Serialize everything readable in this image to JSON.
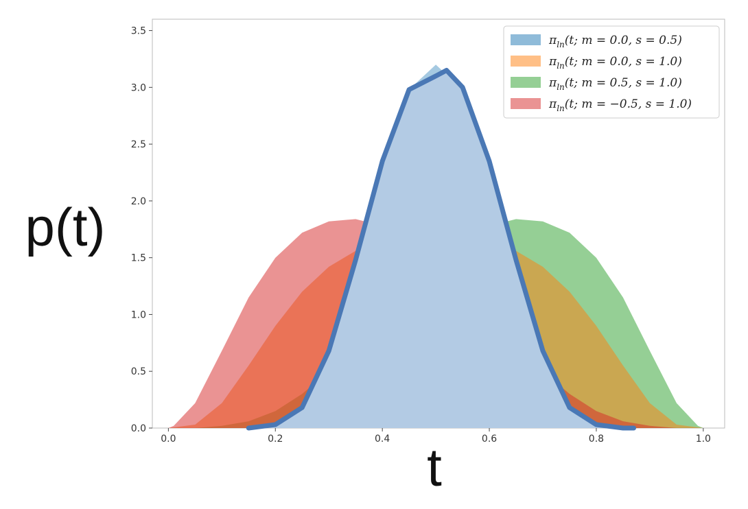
{
  "chart_data": {
    "type": "area",
    "title": "",
    "xlabel": "t",
    "ylabel": "p(t)",
    "xlim": [
      -0.03,
      1.04
    ],
    "ylim": [
      0,
      3.6
    ],
    "xticks": [
      0.0,
      0.2,
      0.4,
      0.6,
      0.8,
      1.0
    ],
    "xtick_labels": [
      "0.0",
      "0.2",
      "0.4",
      "0.6",
      "0.8",
      "1.0"
    ],
    "yticks": [
      0.0,
      0.5,
      1.0,
      1.5,
      2.0,
      2.5,
      3.0,
      3.5
    ],
    "ytick_labels": [
      "0.0",
      "0.5",
      "1.0",
      "1.5",
      "2.0",
      "2.5",
      "3.0",
      "3.5"
    ],
    "grid": false,
    "legend_position": "top-right",
    "series": [
      {
        "name": "π_ln(t; m = 0.0, s = 0.5)",
        "legend_main": "π",
        "legend_sub": "ln",
        "legend_rest": "(t; m = 0.0, s = 0.5)",
        "color": "#1f77b4",
        "x": [
          0.0,
          0.05,
          0.1,
          0.15,
          0.2,
          0.25,
          0.3,
          0.35,
          0.4,
          0.45,
          0.5,
          0.55,
          0.6,
          0.65,
          0.7,
          0.75,
          0.8,
          0.85,
          0.9,
          0.95,
          1.0
        ],
        "y": [
          0,
          0.0,
          0.0,
          0.0,
          0.02,
          0.18,
          0.68,
          1.48,
          2.35,
          2.98,
          3.2,
          2.98,
          2.35,
          1.48,
          0.68,
          0.18,
          0.02,
          0.0,
          0.0,
          0.0,
          0
        ]
      },
      {
        "name": "π_ln(t; m = 0.0, s = 1.0)",
        "legend_main": "π",
        "legend_sub": "ln",
        "legend_rest": "(t; m = 0.0, s = 1.0)",
        "color": "#ff7f0e",
        "x": [
          0.0,
          0.05,
          0.1,
          0.15,
          0.2,
          0.25,
          0.3,
          0.35,
          0.4,
          0.45,
          0.5,
          0.55,
          0.6,
          0.65,
          0.7,
          0.75,
          0.8,
          0.85,
          0.9,
          0.95,
          1.0
        ],
        "y": [
          0,
          0.03,
          0.22,
          0.55,
          0.9,
          1.2,
          1.42,
          1.56,
          1.63,
          1.62,
          1.6,
          1.62,
          1.63,
          1.56,
          1.42,
          1.2,
          0.9,
          0.55,
          0.22,
          0.03,
          0
        ]
      },
      {
        "name": "π_ln(t; m = 0.5, s = 1.0)",
        "legend_main": "π",
        "legend_sub": "ln",
        "legend_rest": "(t; m = 0.5, s = 1.0)",
        "color": "#2ca02c",
        "x": [
          0.0,
          0.05,
          0.1,
          0.15,
          0.2,
          0.25,
          0.3,
          0.35,
          0.4,
          0.45,
          0.5,
          0.55,
          0.6,
          0.65,
          0.7,
          0.75,
          0.8,
          0.85,
          0.9,
          0.95,
          0.99,
          1.0
        ],
        "y": [
          0,
          0.0,
          0.02,
          0.06,
          0.15,
          0.3,
          0.5,
          0.74,
          1.0,
          1.25,
          1.47,
          1.65,
          1.78,
          1.84,
          1.82,
          1.72,
          1.5,
          1.15,
          0.68,
          0.22,
          0.02,
          0
        ]
      },
      {
        "name": "π_ln(t; m = −0.5, s = 1.0)",
        "legend_main": "π",
        "legend_sub": "ln",
        "legend_rest": "(t; m = −0.5, s = 1.0)",
        "color": "#d62728",
        "x": [
          0.0,
          0.01,
          0.05,
          0.1,
          0.15,
          0.2,
          0.25,
          0.3,
          0.35,
          0.4,
          0.45,
          0.5,
          0.55,
          0.6,
          0.65,
          0.7,
          0.75,
          0.8,
          0.85,
          0.9,
          0.95,
          1.0
        ],
        "y": [
          0,
          0.02,
          0.22,
          0.68,
          1.15,
          1.5,
          1.72,
          1.82,
          1.84,
          1.78,
          1.65,
          1.47,
          1.25,
          1.0,
          0.74,
          0.5,
          0.3,
          0.15,
          0.06,
          0.02,
          0.0,
          0
        ]
      }
    ],
    "overlay_curve": {
      "color": "#4a78b5",
      "x": [
        0.15,
        0.2,
        0.25,
        0.3,
        0.35,
        0.4,
        0.45,
        0.5,
        0.52,
        0.55,
        0.6,
        0.65,
        0.7,
        0.75,
        0.8,
        0.85,
        0.87
      ],
      "y": [
        0.0,
        0.03,
        0.18,
        0.68,
        1.48,
        2.35,
        2.98,
        3.1,
        3.15,
        3.0,
        2.35,
        1.48,
        0.68,
        0.18,
        0.03,
        0.0,
        0.0
      ]
    }
  }
}
